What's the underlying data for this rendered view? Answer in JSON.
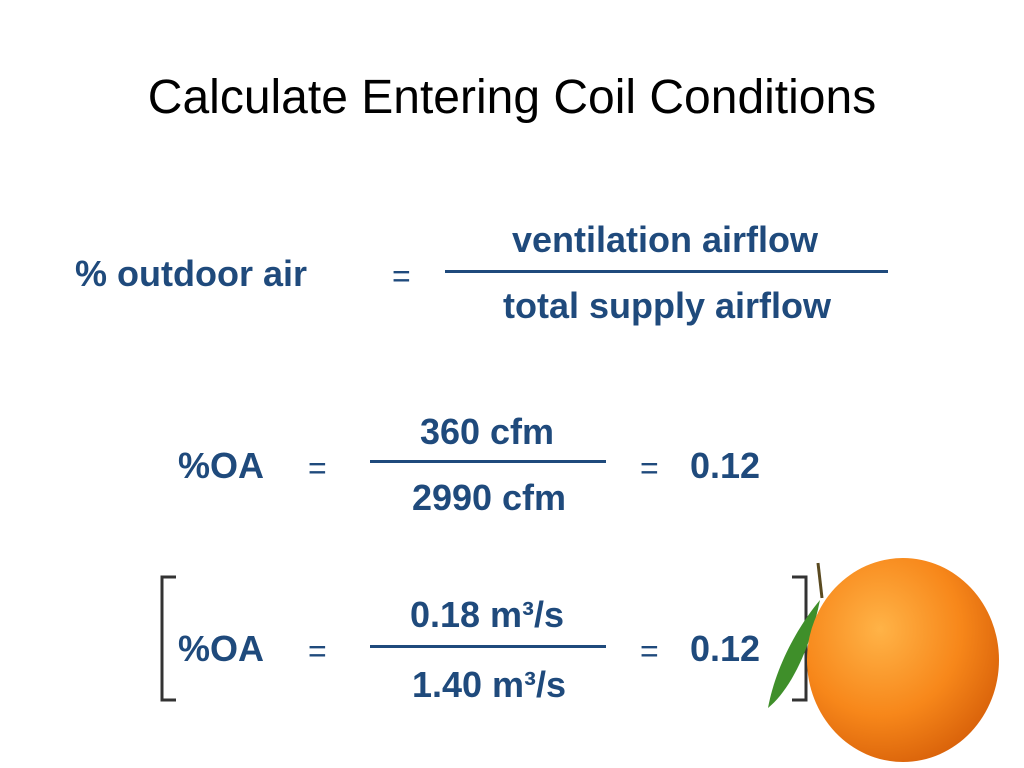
{
  "title": "Calculate Entering Coil Conditions",
  "equations": [
    {
      "lhs": "% outdoor air",
      "equals": "=",
      "numerator": "ventilation airflow",
      "denominator": "total supply airflow"
    },
    {
      "lhs": "%OA",
      "equals": "=",
      "numerator": "360 cfm",
      "denominator": "2990 cfm",
      "result_equals": "=",
      "result": "0.12"
    },
    {
      "lhs": "%OA",
      "equals": "=",
      "numerator": "0.18 m³/s",
      "denominator": "1.40 m³/s",
      "result_equals": "=",
      "result": "0.12"
    }
  ]
}
